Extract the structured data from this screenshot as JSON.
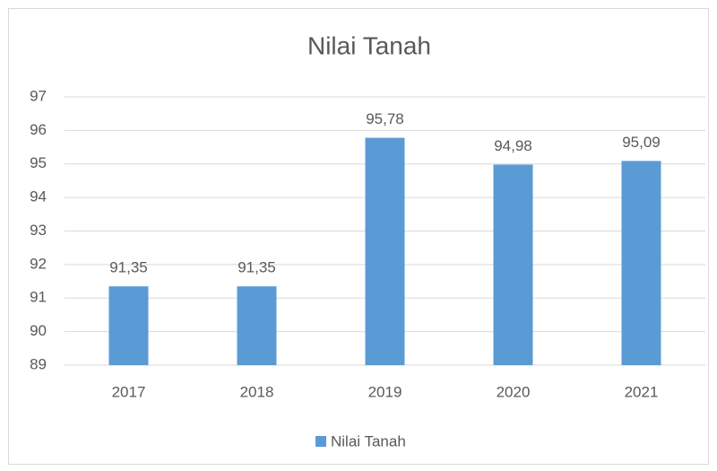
{
  "chart_data": {
    "type": "bar",
    "title": "Nilai Tanah",
    "categories": [
      "2017",
      "2018",
      "2019",
      "2020",
      "2021"
    ],
    "series": [
      {
        "name": "Nilai Tanah",
        "color": "#5b9bd5",
        "values": [
          91.35,
          91.35,
          95.78,
          94.98,
          95.09
        ],
        "value_labels": [
          "91,35",
          "91,35",
          "95,78",
          "94,98",
          "95,09"
        ]
      }
    ],
    "ylim": [
      89,
      97
    ],
    "yticks": [
      89,
      90,
      91,
      92,
      93,
      94,
      95,
      96,
      97
    ],
    "grid": true,
    "legend": "bottom"
  }
}
